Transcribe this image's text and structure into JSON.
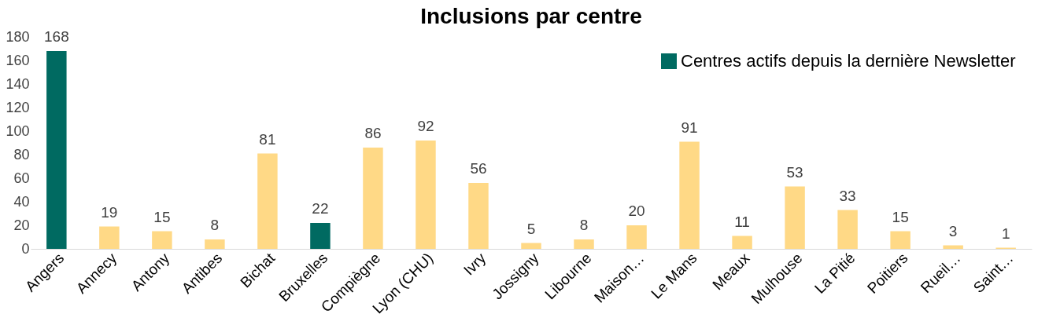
{
  "chart_data": {
    "type": "bar",
    "title": "Inclusions par centre",
    "stacked": true,
    "data_labels": true,
    "legend": "top right",
    "categories": [
      "Angers",
      "Annecy",
      "Antony",
      "Antibes",
      "Bichat",
      "Bruxelles",
      "Compiègne",
      "Lyon (CHU)",
      "Ivry",
      "Jossigny",
      "Libourne",
      "Maison…",
      "Le Mans",
      "Meaux",
      "Mulhouse",
      "La Pitié",
      "Poitiers",
      "Rueil…",
      "Saint…"
    ],
    "series": [
      {
        "name": "Centres actifs depuis la dernière Newsletter",
        "color": "#006a61",
        "values": [
          168,
          null,
          null,
          null,
          null,
          22,
          null,
          null,
          null,
          null,
          null,
          null,
          null,
          null,
          null,
          null,
          null,
          null,
          null
        ]
      },
      {
        "color": "#ffd986",
        "values": [
          null,
          19,
          15,
          8,
          81,
          null,
          86,
          92,
          56,
          5,
          8,
          20,
          91,
          11,
          53,
          33,
          15,
          3,
          1
        ]
      }
    ],
    "ylim": [
      0,
      180
    ],
    "yticks": [
      0,
      20,
      40,
      60,
      80,
      100,
      120,
      140,
      160,
      180
    ]
  }
}
